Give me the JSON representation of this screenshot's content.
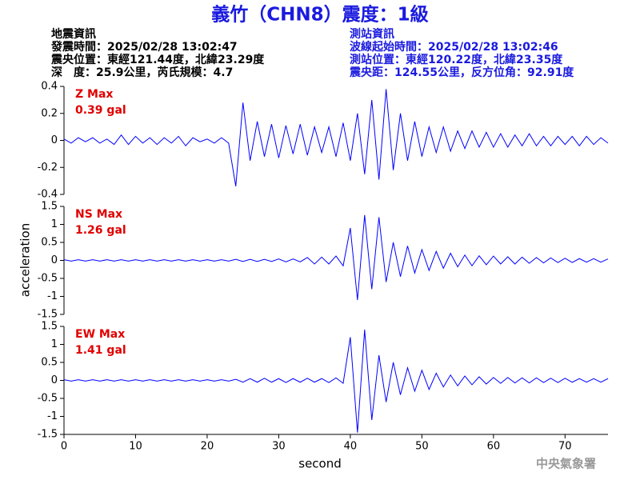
{
  "header": {
    "title": "義竹（CHN8）震度：1級",
    "left": [
      "地震資訊",
      "發震時間：2025/02/28 13:02:47",
      "震央位置：東經121.44度，北緯23.29度",
      "深　度：25.9公里，芮氏規模：4.7"
    ],
    "right": [
      "測站資訊",
      "波線起始時間：2025/02/28 13:02:46",
      "測站位置：東經120.22度，北緯23.35度",
      "震央距：124.55公里，反方位角：92.91度"
    ],
    "footer": "中央氣象署"
  },
  "chart_data": [
    {
      "type": "line",
      "annotations": [
        "Z Max",
        "0.39 gal"
      ],
      "xlim": [
        0,
        76
      ],
      "ylim": [
        -0.4,
        0.4
      ],
      "yticks": [
        -0.4,
        -0.2,
        0,
        0.2,
        0.4
      ],
      "x": [
        0,
        1,
        2,
        3,
        4,
        5,
        6,
        7,
        8,
        9,
        10,
        11,
        12,
        13,
        14,
        15,
        16,
        17,
        18,
        19,
        20,
        21,
        22,
        23,
        24,
        25,
        26,
        27,
        28,
        29,
        30,
        31,
        32,
        33,
        34,
        35,
        36,
        37,
        38,
        39,
        40,
        41,
        42,
        43,
        44,
        45,
        46,
        47,
        48,
        49,
        50,
        51,
        52,
        53,
        54,
        55,
        56,
        57,
        58,
        59,
        60,
        61,
        62,
        63,
        64,
        65,
        66,
        67,
        68,
        69,
        70,
        71,
        72,
        73,
        74,
        75,
        76
      ],
      "series": [
        {
          "name": "Z",
          "color": "#0000ff",
          "values": [
            0.01,
            -0.02,
            0.02,
            -0.01,
            0.02,
            -0.02,
            0.01,
            -0.03,
            0.04,
            -0.03,
            0.03,
            -0.02,
            0.02,
            -0.03,
            0.02,
            -0.02,
            0.03,
            -0.04,
            0.02,
            -0.01,
            0.01,
            -0.02,
            0.02,
            -0.02,
            -0.34,
            0.28,
            -0.15,
            0.14,
            -0.12,
            0.12,
            -0.13,
            0.11,
            -0.1,
            0.12,
            -0.11,
            0.1,
            -0.09,
            0.1,
            -0.12,
            0.13,
            -0.15,
            0.2,
            -0.25,
            0.3,
            -0.29,
            0.38,
            -0.22,
            0.2,
            -0.15,
            0.14,
            -0.12,
            0.1,
            -0.09,
            0.1,
            -0.08,
            0.07,
            -0.06,
            0.07,
            -0.05,
            0.06,
            -0.05,
            0.05,
            -0.05,
            0.04,
            -0.04,
            0.05,
            -0.04,
            0.03,
            -0.04,
            0.03,
            -0.03,
            0.03,
            -0.04,
            0.03,
            -0.03,
            0.02,
            -0.02
          ]
        }
      ]
    },
    {
      "type": "line",
      "annotations": [
        "NS Max",
        "1.26 gal"
      ],
      "ylabel": "acceleration",
      "xlim": [
        0,
        76
      ],
      "ylim": [
        -1.5,
        1.5
      ],
      "yticks": [
        -1.5,
        -1,
        -0.5,
        0,
        0.5,
        1,
        1.5
      ],
      "x": [
        0,
        1,
        2,
        3,
        4,
        5,
        6,
        7,
        8,
        9,
        10,
        11,
        12,
        13,
        14,
        15,
        16,
        17,
        18,
        19,
        20,
        21,
        22,
        23,
        24,
        25,
        26,
        27,
        28,
        29,
        30,
        31,
        32,
        33,
        34,
        35,
        36,
        37,
        38,
        39,
        40,
        41,
        42,
        43,
        44,
        45,
        46,
        47,
        48,
        49,
        50,
        51,
        52,
        53,
        54,
        55,
        56,
        57,
        58,
        59,
        60,
        61,
        62,
        63,
        64,
        65,
        66,
        67,
        68,
        69,
        70,
        71,
        72,
        73,
        74,
        75,
        76
      ],
      "series": [
        {
          "name": "NS",
          "color": "#0000ff",
          "values": [
            0.02,
            -0.02,
            0.02,
            -0.02,
            0.02,
            -0.02,
            0.02,
            -0.02,
            0.02,
            -0.02,
            0.02,
            -0.02,
            0.02,
            -0.02,
            0.02,
            -0.02,
            0.02,
            -0.02,
            0.02,
            -0.02,
            0.02,
            -0.02,
            0.02,
            -0.02,
            0.03,
            -0.03,
            0.03,
            -0.03,
            0.03,
            -0.03,
            0.04,
            -0.04,
            0.04,
            -0.04,
            0.08,
            -0.1,
            0.09,
            -0.1,
            0.12,
            -0.15,
            0.9,
            -1.1,
            1.26,
            -0.8,
            1.2,
            -0.6,
            0.5,
            -0.45,
            0.4,
            -0.35,
            0.3,
            -0.28,
            0.25,
            -0.22,
            0.2,
            -0.18,
            0.15,
            -0.15,
            0.13,
            -0.12,
            0.12,
            -0.1,
            0.1,
            -0.1,
            0.09,
            -0.08,
            0.08,
            -0.07,
            0.07,
            -0.06,
            0.06,
            -0.06,
            0.05,
            -0.05,
            0.05,
            -0.05,
            0.04
          ]
        }
      ]
    },
    {
      "type": "line",
      "annotations": [
        "EW Max",
        "1.41 gal"
      ],
      "xlabel": "second",
      "xlim": [
        0,
        76
      ],
      "xticks": [
        0,
        10,
        20,
        30,
        40,
        50,
        60,
        70
      ],
      "ylim": [
        -1.5,
        1.5
      ],
      "yticks": [
        -1.5,
        -1,
        -0.5,
        0,
        0.5,
        1,
        1.5
      ],
      "x": [
        0,
        1,
        2,
        3,
        4,
        5,
        6,
        7,
        8,
        9,
        10,
        11,
        12,
        13,
        14,
        15,
        16,
        17,
        18,
        19,
        20,
        21,
        22,
        23,
        24,
        25,
        26,
        27,
        28,
        29,
        30,
        31,
        32,
        33,
        34,
        35,
        36,
        37,
        38,
        39,
        40,
        41,
        42,
        43,
        44,
        45,
        46,
        47,
        48,
        49,
        50,
        51,
        52,
        53,
        54,
        55,
        56,
        57,
        58,
        59,
        60,
        61,
        62,
        63,
        64,
        65,
        66,
        67,
        68,
        69,
        70,
        71,
        72,
        73,
        74,
        75,
        76
      ],
      "series": [
        {
          "name": "EW",
          "color": "#0000ff",
          "values": [
            0.02,
            -0.02,
            0.02,
            -0.02,
            0.02,
            -0.02,
            0.02,
            -0.02,
            0.02,
            -0.02,
            0.02,
            -0.02,
            0.02,
            -0.02,
            0.02,
            -0.02,
            0.02,
            -0.02,
            0.02,
            -0.02,
            0.02,
            -0.02,
            0.02,
            -0.02,
            0.03,
            -0.05,
            0.05,
            -0.05,
            0.06,
            -0.05,
            0.05,
            -0.06,
            0.05,
            -0.05,
            0.06,
            -0.05,
            0.05,
            -0.06,
            0.07,
            -0.08,
            1.2,
            -1.45,
            1.41,
            -1.1,
            0.7,
            -0.6,
            0.5,
            -0.4,
            0.35,
            -0.3,
            0.28,
            -0.25,
            0.2,
            -0.18,
            0.15,
            -0.15,
            0.12,
            -0.12,
            0.1,
            -0.1,
            0.08,
            -0.08,
            0.08,
            -0.07,
            0.07,
            -0.07,
            0.07,
            -0.06,
            0.06,
            -0.06,
            0.06,
            -0.05,
            0.05,
            -0.05,
            0.05,
            -0.05,
            0.05
          ]
        }
      ]
    }
  ]
}
